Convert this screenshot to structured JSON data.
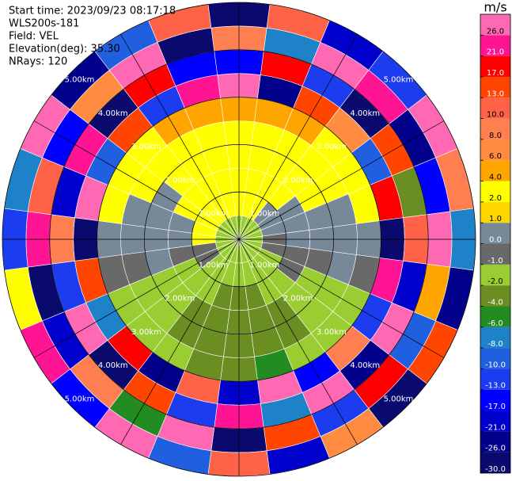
{
  "chart_data": {
    "type": "ppi",
    "info": [
      "Start time: 2023/09/23 08:17:18",
      "WLS200s-181",
      "Field: VEL",
      "Elevation(deg): 35.30",
      "NRays: 120"
    ],
    "azimuths": [
      0,
      15,
      30,
      45,
      60,
      75,
      90,
      105,
      120,
      135,
      150,
      165,
      180,
      195,
      210,
      225,
      240,
      255,
      270,
      285,
      300,
      315,
      330,
      345
    ],
    "range_edges": [
      0,
      0.5,
      1,
      1.5,
      2,
      2.5,
      3,
      3.5,
      4,
      4.5,
      5
    ],
    "rlim": [
      0,
      5
    ],
    "rticks": [
      {
        "value": 1,
        "label": "1.00km"
      },
      {
        "value": 2,
        "label": "2.00km"
      },
      {
        "value": 3,
        "label": "3.00km"
      },
      {
        "value": 4,
        "label": "4.00km"
      },
      {
        "value": 5,
        "label": "5.00km"
      }
    ],
    "values": [
      [
        -1.5,
        3,
        3,
        3,
        3,
        5,
        27,
        -15,
        9,
        -28
      ],
      [
        -1.5,
        3,
        3,
        3,
        3,
        5,
        -23,
        19,
        -7,
        11
      ],
      [
        -1.5,
        3,
        3,
        3,
        3,
        5,
        14,
        -11,
        28,
        -19
      ],
      [
        -1.5,
        0.5,
        3,
        3,
        3,
        3,
        7,
        -28,
        22,
        -12
      ],
      [
        -1.5,
        0.5,
        0.5,
        3,
        3,
        3,
        -9,
        15,
        -23,
        27
      ],
      [
        -1.5,
        0.5,
        0.5,
        0.5,
        0.5,
        3,
        19,
        -3,
        -15,
        9
      ],
      [
        -1.5,
        -0.5,
        0.5,
        0.5,
        0.5,
        0.5,
        -28,
        11,
        27,
        -7
      ],
      [
        -1.5,
        -0.5,
        -0.5,
        -0.5,
        0.5,
        -0.5,
        22,
        -19,
        5,
        -23
      ],
      [
        -1.5,
        -1.5,
        -0.5,
        -1.5,
        -1.5,
        -1.5,
        -12,
        28,
        -9,
        15
      ],
      [
        -1.5,
        -1.5,
        -1.5,
        -1.5,
        -1.5,
        -1.5,
        9,
        -23,
        19,
        -28
      ],
      [
        -1.5,
        -1.5,
        -1.5,
        -3,
        -3,
        -1.5,
        -15,
        27,
        -11,
        7
      ],
      [
        -1.5,
        -1.5,
        -3,
        -3,
        -3,
        -5,
        28,
        -7,
        14,
        -19
      ],
      [
        -1.5,
        -1.5,
        -3,
        -3,
        -3,
        -3,
        -19,
        22,
        -28,
        11
      ],
      [
        -1.5,
        -1.5,
        -3,
        -3,
        -3,
        -3,
        11,
        -12,
        27,
        -9
      ],
      [
        -1.5,
        -1.5,
        -1.5,
        -3,
        -3,
        -1.5,
        -23,
        15,
        -5,
        28
      ],
      [
        -1.5,
        -1.5,
        -1.5,
        -1.5,
        -1.5,
        -1.5,
        19,
        -28,
        9,
        -15
      ],
      [
        -1.5,
        -0.5,
        -1.5,
        -1.5,
        -1.5,
        -1.5,
        -7,
        27,
        -19,
        22
      ],
      [
        -1.5,
        -0.5,
        -0.5,
        0.5,
        -0.5,
        -0.5,
        14,
        -11,
        -28,
        3
      ],
      [
        -1.5,
        3,
        0.5,
        0.5,
        0.5,
        0.5,
        -28,
        9,
        23,
        -12
      ],
      [
        -1.5,
        3,
        0.5,
        0.5,
        0.5,
        3,
        27,
        -19,
        11,
        -7
      ],
      [
        -1.5,
        3,
        3,
        0.5,
        3,
        3,
        -9,
        22,
        -15,
        28
      ],
      [
        -1.5,
        3,
        3,
        3,
        3,
        3,
        15,
        -28,
        7,
        -23
      ],
      [
        -1.5,
        3,
        3,
        3,
        3,
        5,
        -11,
        19,
        27,
        -9
      ],
      [
        -1.5,
        3,
        3,
        3,
        3,
        5,
        22,
        -15,
        -28,
        11
      ]
    ],
    "colorbar": {
      "title": "m/s",
      "levels": [
        -30,
        -26,
        -21,
        -17,
        -13,
        -10,
        -8,
        -6,
        -4,
        -2,
        -1,
        0,
        1,
        2,
        4,
        6,
        8,
        10,
        13,
        17,
        21,
        26,
        30
      ],
      "colors": [
        "#0a0a6e",
        "#00008b",
        "#0000cd",
        "#0000ff",
        "#1c3cf0",
        "#2060e0",
        "#1e82c8",
        "#228b22",
        "#6b8e23",
        "#9acd32",
        "#696969",
        "#778899",
        "#ffd700",
        "#ffff00",
        "#ffa500",
        "#ff8c40",
        "#ff7f50",
        "#ff6347",
        "#ff4500",
        "#ff0000",
        "#ff1493",
        "#ff69b4"
      ],
      "ticks": [
        {
          "value": 26,
          "label": "26.0"
        },
        {
          "value": 21,
          "label": "21.0"
        },
        {
          "value": 17,
          "label": "17.0"
        },
        {
          "value": 13,
          "label": "13.0"
        },
        {
          "value": 10,
          "label": "10.0"
        },
        {
          "value": 8,
          "label": "8.0"
        },
        {
          "value": 6,
          "label": "6.0"
        },
        {
          "value": 4,
          "label": "4.0"
        },
        {
          "value": 2,
          "label": "2.0"
        },
        {
          "value": 1,
          "label": "1.0"
        },
        {
          "value": 0,
          "label": "0.0"
        },
        {
          "value": -1,
          "label": "-1.0"
        },
        {
          "value": -2,
          "label": "-2.0"
        },
        {
          "value": -4,
          "label": "-4.0"
        },
        {
          "value": -6,
          "label": "-6.0"
        },
        {
          "value": -8,
          "label": "-8.0"
        },
        {
          "value": -10,
          "label": "-10.0"
        },
        {
          "value": -13,
          "label": "-13.0"
        },
        {
          "value": -17,
          "label": "-17.0"
        },
        {
          "value": -21,
          "label": "-21.0"
        },
        {
          "value": -26,
          "label": "-26.0"
        },
        {
          "value": -30,
          "label": "-30.0"
        }
      ]
    }
  }
}
